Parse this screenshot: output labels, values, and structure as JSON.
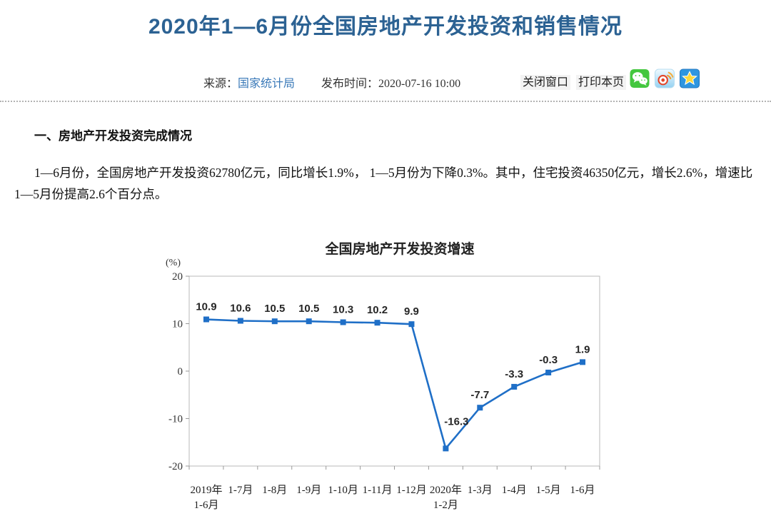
{
  "page": {
    "title": "2020年1—6月份全国房地产开发投资和销售情况",
    "meta": {
      "source_label": "来源：",
      "source_link": "国家统计局",
      "publish_label": "发布时间：",
      "publish_time": "2020-07-16 10:00",
      "close_window_label": "关闭窗口",
      "print_page_label": "打印本页",
      "share_icons": [
        "wechat-share-icon",
        "weibo-share-icon",
        "qzone-share-icon"
      ]
    }
  },
  "article": {
    "section_heading": "一、房地产开发投资完成情况",
    "paragraph": "1—6月份，全国房地产开发投资62780亿元，同比增长1.9%， 1—5月份为下降0.3%。其中，住宅投资46350亿元，增长2.6%，增速比1—5月份提高2.6个百分点。"
  },
  "colors": {
    "title": "#2c6293",
    "link": "#3a79b8",
    "chart_line": "#1f6fc7"
  },
  "chart_data": {
    "type": "line",
    "title": "全国房地产开发投资增速",
    "unit_label": "(%)",
    "categories": [
      "2019年\n1-6月",
      "1-7月",
      "1-8月",
      "1-9月",
      "1-10月",
      "1-11月",
      "1-12月",
      "2020年\n1-2月",
      "1-3月",
      "1-4月",
      "1-5月",
      "1-6月"
    ],
    "values": [
      10.9,
      10.6,
      10.5,
      10.5,
      10.3,
      10.2,
      9.9,
      -16.3,
      -7.7,
      -3.3,
      -0.3,
      1.9
    ],
    "series_name": "全国房地产开发投资增速",
    "xlabel": "",
    "ylabel": "(%)",
    "ylim": [
      -20,
      20
    ],
    "yticks": [
      20,
      10,
      0,
      -10,
      -20
    ],
    "line_color": "#1f6fc7",
    "marker": "square",
    "grid": false,
    "legend": "none",
    "data_labels": true
  }
}
